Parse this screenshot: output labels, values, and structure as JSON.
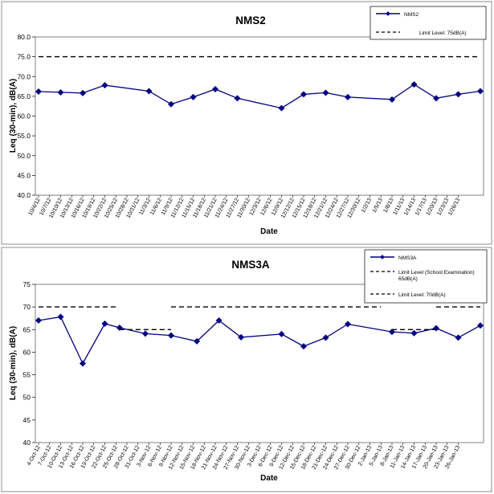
{
  "chart_data": [
    {
      "type": "line",
      "title": "NMS2",
      "xlabel": "Date",
      "ylabel": "Leq (30-min), dB(A)",
      "ylim": [
        40,
        80
      ],
      "yticks": [
        "40.0",
        "45.0",
        "50.0",
        "55.0",
        "60.0",
        "65.0",
        "70.0",
        "75.0",
        "80.0"
      ],
      "grid": false,
      "legend_position": "top-right",
      "x_tick_labels": [
        "10/4/12",
        "10/7/12",
        "10/10/12",
        "10/13/12",
        "10/16/12",
        "10/19/12",
        "10/22/12",
        "10/25/12",
        "10/28/12",
        "10/31/12",
        "11/3/12",
        "11/6/12",
        "11/9/12",
        "11/12/12",
        "11/15/12",
        "11/18/12",
        "11/21/12",
        "11/24/12",
        "11/27/12",
        "11/30/12",
        "12/3/12",
        "12/6/12",
        "12/9/12",
        "12/12/12",
        "12/15/12",
        "12/18/12",
        "12/21/12",
        "12/24/12",
        "12/27/12",
        "12/30/12",
        "1/2/13",
        "1/5/13",
        "1/8/13",
        "1/11/13",
        "1/14/13",
        "1/17/13",
        "1/20/13",
        "1/23/13",
        "1/26/13"
      ],
      "series": [
        {
          "name": "NMS2",
          "color": "#000080",
          "marker": "diamond",
          "points": [
            [
              "2012-10-04",
              66.2
            ],
            [
              "2012-10-10",
              66.0
            ],
            [
              "2012-10-16",
              65.8
            ],
            [
              "2012-10-22",
              67.8
            ],
            [
              "2012-11-03",
              66.3
            ],
            [
              "2012-11-09",
              63.0
            ],
            [
              "2012-11-15",
              64.8
            ],
            [
              "2012-11-21",
              66.8
            ],
            [
              "2012-11-27",
              64.5
            ],
            [
              "2012-12-09",
              62.0
            ],
            [
              "2012-12-15",
              65.5
            ],
            [
              "2012-12-21",
              65.9
            ],
            [
              "2012-12-27",
              64.8
            ],
            [
              "2013-01-08",
              64.2
            ],
            [
              "2013-01-14",
              68.0
            ],
            [
              "2013-01-20",
              64.5
            ],
            [
              "2013-01-26",
              65.5
            ],
            [
              "2013-02-01",
              66.3
            ]
          ]
        },
        {
          "name": "Limit Level: 75dB(A)",
          "color": "#000000",
          "style": "dashed",
          "points": [
            [
              "2012-10-04",
              75
            ],
            [
              "2013-02-01",
              75
            ]
          ]
        }
      ]
    },
    {
      "type": "line",
      "title": "NMS3A",
      "xlabel": "Date",
      "ylabel": "Leq (30-min), dB(A)",
      "ylim": [
        40,
        75
      ],
      "yticks": [
        "40",
        "45",
        "50",
        "55",
        "60",
        "65",
        "70",
        "75"
      ],
      "grid": false,
      "legend_position": "top-right",
      "x_tick_labels": [
        "4-Oct-12",
        "7-Oct-12",
        "10-Oct-12",
        "13-Oct-12",
        "16-Oct-12",
        "19-Oct-12",
        "22-Oct-12",
        "25-Oct-12",
        "28-Oct-12",
        "31-Oct-12",
        "3-Nov-12",
        "6-Nov-12",
        "9-Nov-12",
        "12-Nov-12",
        "15-Nov-12",
        "18-Nov-12",
        "21-Nov-12",
        "24-Nov-12",
        "27-Nov-12",
        "30-Nov-12",
        "3-Dec-12",
        "6-Dec-12",
        "9-Dec-12",
        "12-Dec-12",
        "15-Dec-12",
        "18-Dec-12",
        "21-Dec-12",
        "24-Dec-12",
        "27-Dec-12",
        "30-Dec-12",
        "2-Jan-13",
        "5-Jan-13",
        "8-Jan-13",
        "11-Jan-13",
        "14-Jan-13",
        "17-Jan-13",
        "20-Jan-13",
        "23-Jan-13",
        "26-Jan-13"
      ],
      "series": [
        {
          "name": "NMS3A",
          "color": "#000080",
          "marker": "diamond",
          "points": [
            [
              "2012-10-04",
              67.0
            ],
            [
              "2012-10-10",
              67.8
            ],
            [
              "2012-10-16",
              57.5
            ],
            [
              "2012-10-22",
              66.3
            ],
            [
              "2012-10-26",
              65.4
            ],
            [
              "2012-11-02",
              64.1
            ],
            [
              "2012-11-09",
              63.7
            ],
            [
              "2012-11-16",
              62.4
            ],
            [
              "2012-11-22",
              67.0
            ],
            [
              "2012-11-28",
              63.3
            ],
            [
              "2012-12-09",
              64.0
            ],
            [
              "2012-12-15",
              61.3
            ],
            [
              "2012-12-21",
              63.2
            ],
            [
              "2012-12-27",
              66.2
            ],
            [
              "2013-01-08",
              64.5
            ],
            [
              "2013-01-14",
              64.2
            ],
            [
              "2013-01-20",
              65.3
            ],
            [
              "2013-01-26",
              63.2
            ],
            [
              "2013-02-01",
              65.9
            ]
          ]
        },
        {
          "name": "Limit Level (School Examination) 65dB(A)",
          "color": "#000000",
          "style": "dashed",
          "segments": [
            [
              [
                "2012-10-26",
                65
              ],
              [
                "2012-11-09",
                65
              ]
            ],
            [
              [
                "2013-01-08",
                65
              ],
              [
                "2013-01-20",
                65
              ]
            ]
          ]
        },
        {
          "name": "Limit Level: 70dB(A)",
          "color": "#000000",
          "style": "dashed",
          "segments": [
            [
              [
                "2012-10-04",
                70
              ],
              [
                "2012-10-25",
                70
              ]
            ],
            [
              [
                "2012-11-09",
                70
              ],
              [
                "2013-01-05",
                70
              ]
            ],
            [
              [
                "2013-01-20",
                70
              ],
              [
                "2013-02-01",
                70
              ]
            ]
          ]
        }
      ]
    }
  ]
}
